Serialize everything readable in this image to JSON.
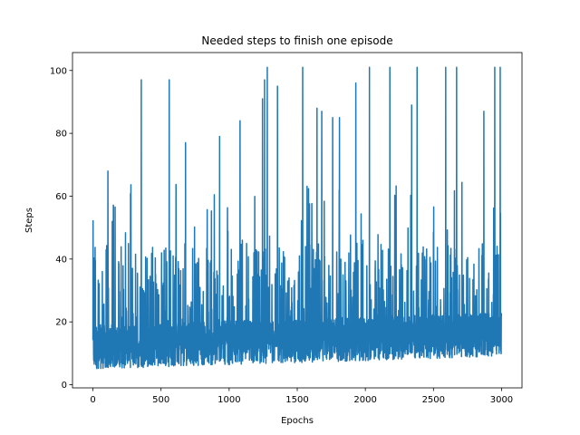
{
  "chart_data": {
    "type": "line",
    "title": "Needed steps to finish one episode",
    "xlabel": "Epochs",
    "ylabel": "Steps",
    "xlim": [
      -150,
      3150
    ],
    "ylim": [
      -1,
      105.7
    ],
    "xticks": [
      0,
      500,
      1000,
      1500,
      2000,
      2500,
      3000
    ],
    "yticks": [
      0,
      20,
      40,
      60,
      80,
      100
    ],
    "grid": false,
    "series": [
      {
        "color": "#1f77b4",
        "n_points": 3000,
        "value_range": [
          3,
          101
        ],
        "typical_range": [
          4,
          40
        ],
        "notable_peaks": [
          {
            "x": 110,
            "y": 68
          },
          {
            "x": 355,
            "y": 97
          },
          {
            "x": 560,
            "y": 97
          },
          {
            "x": 680,
            "y": 77
          },
          {
            "x": 930,
            "y": 79
          },
          {
            "x": 1080,
            "y": 84
          },
          {
            "x": 1245,
            "y": 91
          },
          {
            "x": 1260,
            "y": 97
          },
          {
            "x": 1280,
            "y": 101
          },
          {
            "x": 1355,
            "y": 95
          },
          {
            "x": 1540,
            "y": 101
          },
          {
            "x": 1645,
            "y": 88
          },
          {
            "x": 1680,
            "y": 87
          },
          {
            "x": 1760,
            "y": 85
          },
          {
            "x": 1810,
            "y": 85
          },
          {
            "x": 1930,
            "y": 96
          },
          {
            "x": 2030,
            "y": 101
          },
          {
            "x": 2180,
            "y": 101
          },
          {
            "x": 2340,
            "y": 89
          },
          {
            "x": 2380,
            "y": 101
          },
          {
            "x": 2590,
            "y": 101
          },
          {
            "x": 2670,
            "y": 101
          },
          {
            "x": 2870,
            "y": 87
          },
          {
            "x": 2950,
            "y": 101
          },
          {
            "x": 2990,
            "y": 101
          }
        ]
      }
    ]
  }
}
